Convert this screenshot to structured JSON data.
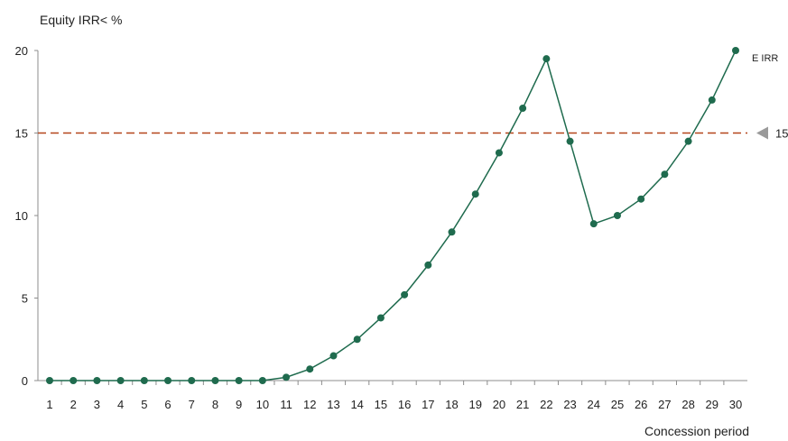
{
  "chart_data": {
    "type": "line",
    "ylabel": "Equity IRR< %",
    "xlabel": "Concession period",
    "x": [
      1,
      2,
      3,
      4,
      5,
      6,
      7,
      8,
      9,
      10,
      11,
      12,
      13,
      14,
      15,
      16,
      17,
      18,
      19,
      20,
      21,
      22,
      23,
      24,
      25,
      26,
      27,
      28,
      29,
      30
    ],
    "xlim": [
      1,
      30
    ],
    "ylim": [
      0,
      20
    ],
    "yticks": [
      0,
      5,
      10,
      15,
      20
    ],
    "series": [
      {
        "name": "E IRR",
        "color": "#1f6b4e",
        "values": [
          0,
          0,
          0,
          0,
          0,
          0,
          0,
          0,
          0,
          0,
          0.2,
          0.7,
          1.5,
          2.5,
          3.8,
          5.2,
          7.0,
          9.0,
          11.3,
          13.8,
          16.5,
          19.5,
          14.5,
          9.5,
          10.0,
          11.0,
          12.5,
          14.5,
          17.0,
          20.0
        ]
      }
    ],
    "reference_line": {
      "value": 15,
      "label": "15",
      "color": "#b5451b"
    },
    "grid": false,
    "legend": "none"
  }
}
